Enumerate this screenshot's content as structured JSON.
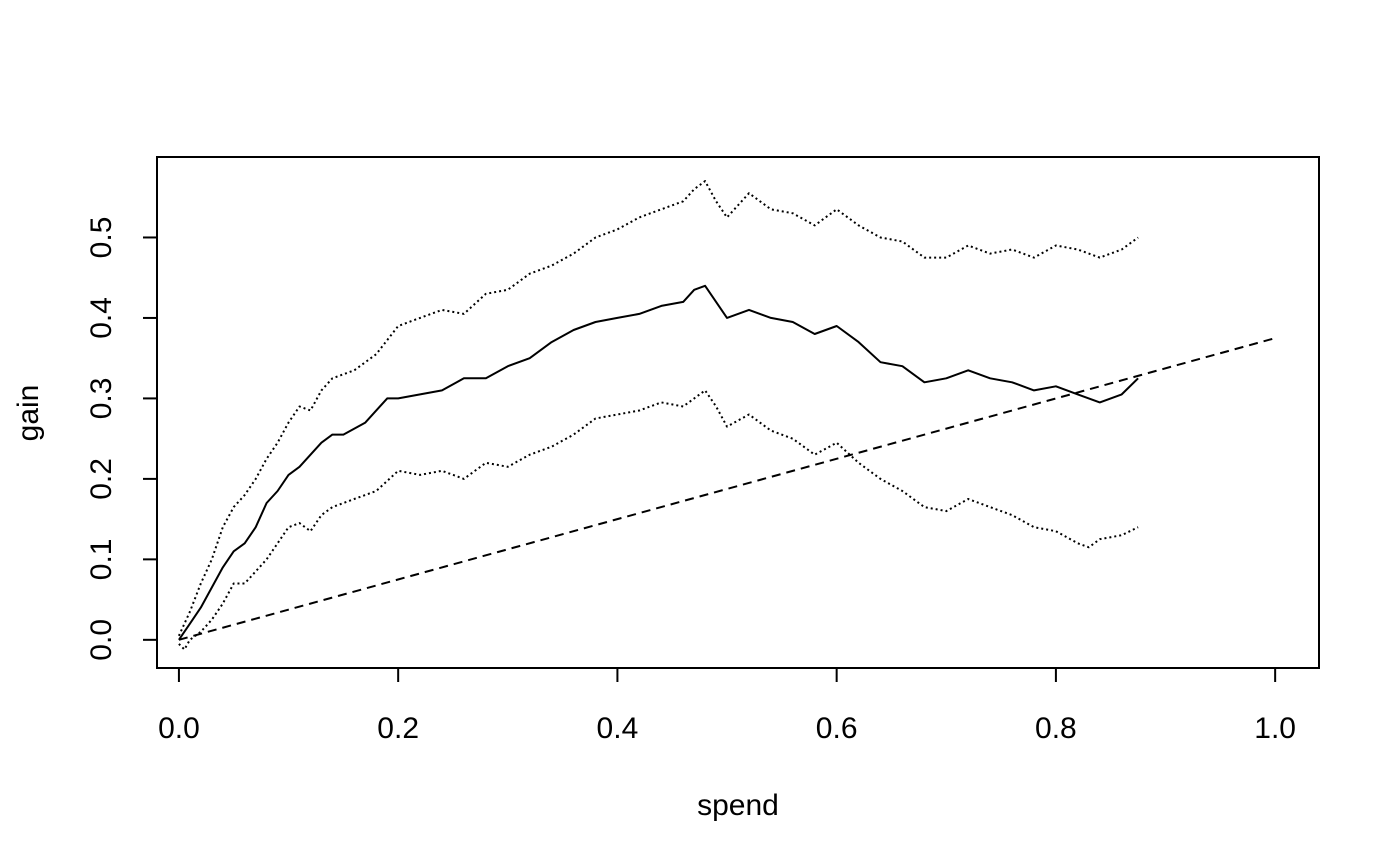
{
  "chart_data": {
    "type": "line",
    "title": "",
    "xlabel": "spend",
    "ylabel": "gain",
    "xlim": [
      -0.02,
      1.04
    ],
    "ylim": [
      -0.035,
      0.6
    ],
    "x_ticks": [
      0.0,
      0.2,
      0.4,
      0.6,
      0.8,
      1.0
    ],
    "x_tick_labels": [
      "0.0",
      "0.2",
      "0.4",
      "0.6",
      "0.8",
      "1.0"
    ],
    "y_ticks": [
      0.0,
      0.1,
      0.2,
      0.3,
      0.4,
      0.5
    ],
    "y_tick_labels": [
      "0.0",
      "0.1",
      "0.2",
      "0.3",
      "0.4",
      "0.5"
    ],
    "grid": false,
    "legend": "none",
    "series": [
      {
        "style": "solid",
        "color": "#000000",
        "x": [
          0.0,
          0.01,
          0.02,
          0.03,
          0.04,
          0.05,
          0.06,
          0.07,
          0.08,
          0.09,
          0.1,
          0.11,
          0.12,
          0.13,
          0.14,
          0.15,
          0.17,
          0.19,
          0.2,
          0.22,
          0.24,
          0.26,
          0.28,
          0.3,
          0.32,
          0.34,
          0.36,
          0.38,
          0.4,
          0.42,
          0.44,
          0.46,
          0.47,
          0.48,
          0.49,
          0.5,
          0.52,
          0.54,
          0.56,
          0.58,
          0.6,
          0.62,
          0.64,
          0.66,
          0.68,
          0.7,
          0.72,
          0.74,
          0.76,
          0.78,
          0.8,
          0.82,
          0.84,
          0.86,
          0.875
        ],
        "y": [
          0.0,
          0.02,
          0.04,
          0.065,
          0.09,
          0.11,
          0.12,
          0.14,
          0.17,
          0.185,
          0.205,
          0.215,
          0.23,
          0.245,
          0.255,
          0.255,
          0.27,
          0.3,
          0.3,
          0.305,
          0.31,
          0.325,
          0.325,
          0.34,
          0.35,
          0.37,
          0.385,
          0.395,
          0.4,
          0.405,
          0.415,
          0.42,
          0.435,
          0.44,
          0.42,
          0.4,
          0.41,
          0.4,
          0.395,
          0.38,
          0.39,
          0.37,
          0.345,
          0.34,
          0.32,
          0.325,
          0.335,
          0.325,
          0.32,
          0.31,
          0.315,
          0.305,
          0.295,
          0.305,
          0.325
        ]
      },
      {
        "style": "dotted",
        "color": "#000000",
        "x": [
          0.0,
          0.01,
          0.02,
          0.03,
          0.04,
          0.05,
          0.06,
          0.07,
          0.08,
          0.09,
          0.1,
          0.11,
          0.12,
          0.13,
          0.14,
          0.16,
          0.18,
          0.2,
          0.22,
          0.24,
          0.26,
          0.28,
          0.3,
          0.32,
          0.34,
          0.36,
          0.38,
          0.4,
          0.42,
          0.44,
          0.46,
          0.47,
          0.48,
          0.49,
          0.5,
          0.52,
          0.54,
          0.56,
          0.58,
          0.6,
          0.62,
          0.64,
          0.66,
          0.68,
          0.7,
          0.72,
          0.74,
          0.76,
          0.78,
          0.8,
          0.82,
          0.84,
          0.86,
          0.875
        ],
        "y": [
          0.005,
          0.035,
          0.07,
          0.1,
          0.14,
          0.165,
          0.18,
          0.2,
          0.225,
          0.245,
          0.27,
          0.29,
          0.285,
          0.31,
          0.325,
          0.335,
          0.355,
          0.39,
          0.4,
          0.41,
          0.405,
          0.43,
          0.435,
          0.455,
          0.465,
          0.48,
          0.5,
          0.51,
          0.525,
          0.535,
          0.545,
          0.56,
          0.57,
          0.545,
          0.525,
          0.555,
          0.535,
          0.53,
          0.515,
          0.535,
          0.515,
          0.5,
          0.495,
          0.475,
          0.475,
          0.49,
          0.48,
          0.485,
          0.475,
          0.49,
          0.485,
          0.475,
          0.485,
          0.5
        ]
      },
      {
        "style": "dotted",
        "color": "#000000",
        "x": [
          0.0,
          0.005,
          0.01,
          0.02,
          0.03,
          0.04,
          0.05,
          0.06,
          0.07,
          0.08,
          0.09,
          0.1,
          0.11,
          0.12,
          0.13,
          0.14,
          0.16,
          0.18,
          0.2,
          0.22,
          0.24,
          0.26,
          0.28,
          0.3,
          0.32,
          0.34,
          0.36,
          0.38,
          0.4,
          0.42,
          0.44,
          0.46,
          0.47,
          0.48,
          0.49,
          0.5,
          0.52,
          0.54,
          0.56,
          0.58,
          0.6,
          0.62,
          0.64,
          0.66,
          0.68,
          0.7,
          0.72,
          0.74,
          0.76,
          0.78,
          0.8,
          0.82,
          0.83,
          0.84,
          0.86,
          0.875
        ],
        "y": [
          -0.005,
          -0.012,
          0.0,
          0.01,
          0.025,
          0.045,
          0.07,
          0.07,
          0.085,
          0.1,
          0.12,
          0.14,
          0.145,
          0.135,
          0.155,
          0.165,
          0.175,
          0.185,
          0.21,
          0.205,
          0.21,
          0.2,
          0.22,
          0.215,
          0.23,
          0.24,
          0.255,
          0.275,
          0.28,
          0.285,
          0.295,
          0.29,
          0.3,
          0.31,
          0.29,
          0.265,
          0.28,
          0.26,
          0.25,
          0.23,
          0.245,
          0.22,
          0.2,
          0.185,
          0.165,
          0.16,
          0.175,
          0.165,
          0.155,
          0.14,
          0.135,
          0.12,
          0.115,
          0.125,
          0.13,
          0.14
        ]
      },
      {
        "style": "dashed",
        "color": "#000000",
        "x": [
          0.0,
          1.0
        ],
        "y": [
          0.0,
          0.375
        ]
      }
    ]
  }
}
